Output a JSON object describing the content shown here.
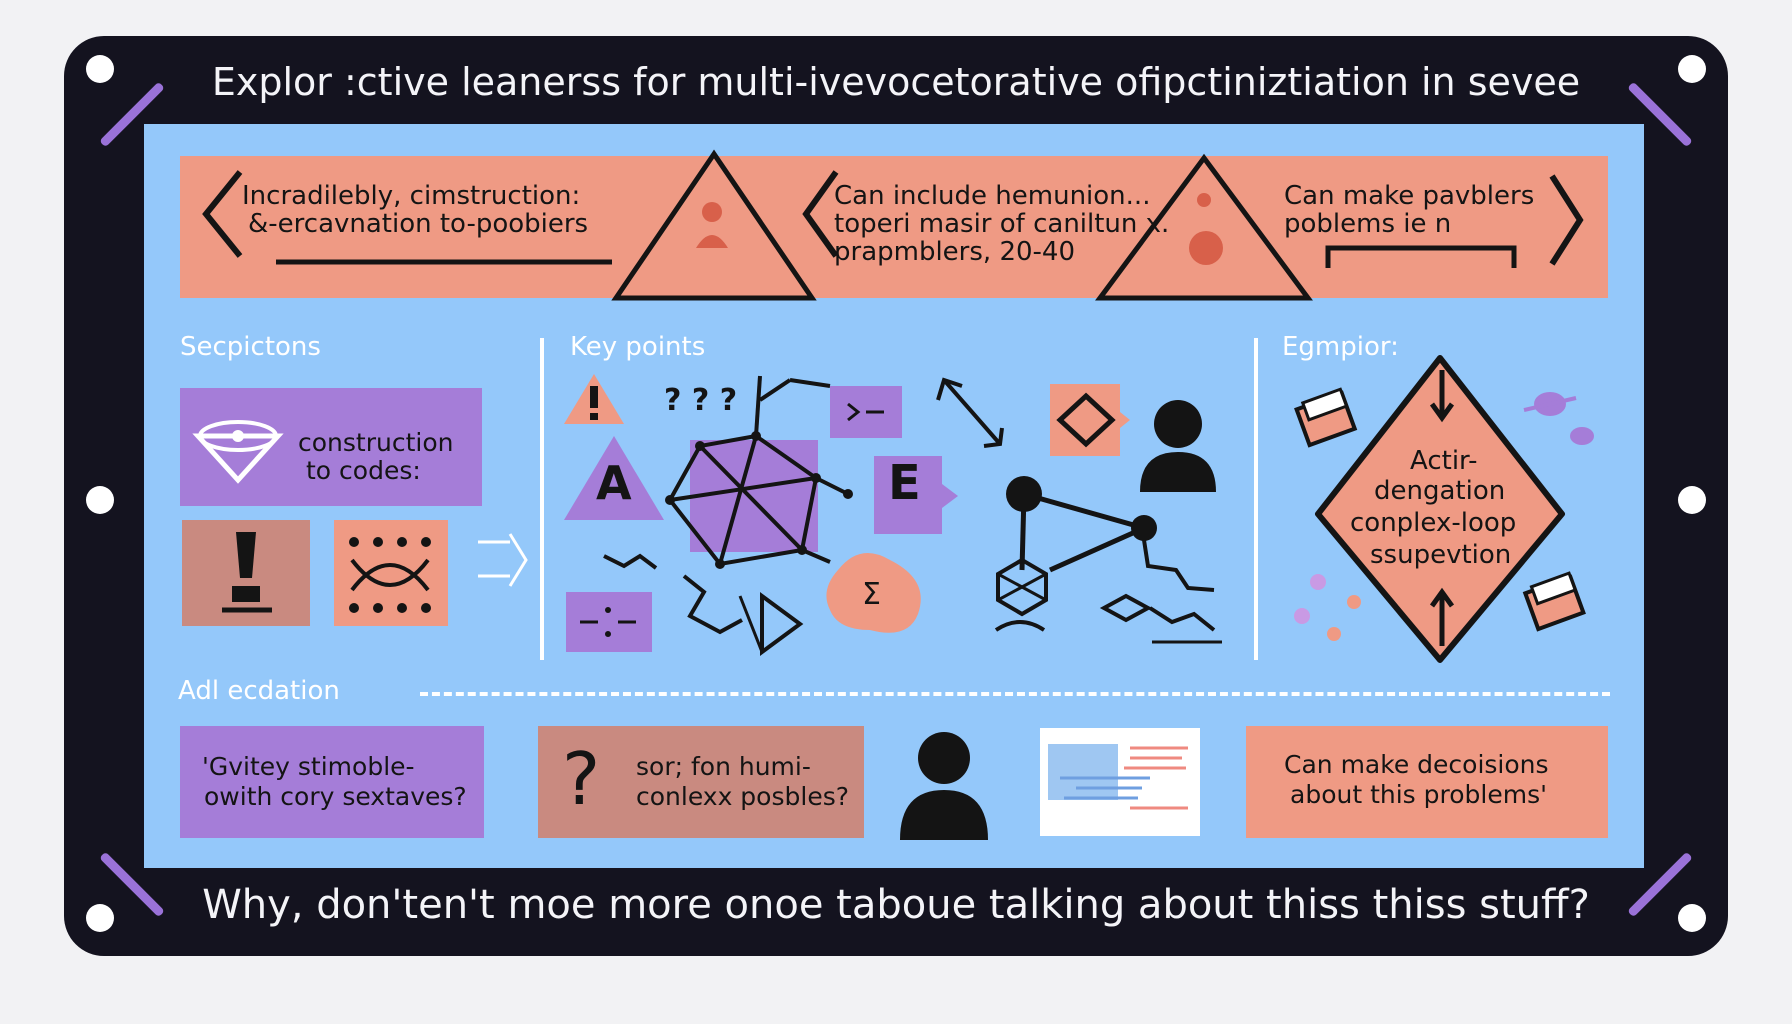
{
  "title": "Explor :ctive leanerss for multi-ivevocetorative ofipctiniztiation in sevee",
  "banner": {
    "text1_line1": "Incradilebly, cimstruction:",
    "text1_line2": "&-ercavnation to-poobiers",
    "text2_line1": "Can include hemunion...",
    "text2_line2": "toperi masir of caniltun x.",
    "text2_line3": "prapmblers, 20-40",
    "text3_line1": "Can make pavblers",
    "text3_line2": "poblems ie n"
  },
  "sections": {
    "left_label": "Secpictons",
    "middle_label": "Key points",
    "right_label": "Egmpior:"
  },
  "left_column": {
    "construction_line1": "construction",
    "construction_line2": "to codes:"
  },
  "middle_column": {
    "letter_a": "A",
    "letter_e": "E",
    "question_marks": "? ? ?",
    "sigma_label": "Σ"
  },
  "diamond": {
    "line1": "Actir-",
    "line2": "dengation",
    "line3": "conplex-loop",
    "line4": "ssupevtion"
  },
  "bottom_section": {
    "label": "Adl ecdation",
    "box1_line1": "'Gvitey stimoble-",
    "box1_line2": "owith cory sextaves?",
    "box2_line1": "sor; fon humi-",
    "box2_line2": "conlexx posbles?",
    "box2_mark": "?",
    "box3_line1": "Can make decoisions",
    "box3_line2": "about this problems'"
  },
  "footer": "Why, don'ten't moe more onoe taboue talking about thiss thiss stuff?",
  "colors": {
    "frame": "#14131f",
    "panel": "#94c8fa",
    "salmon": "#ef9a84",
    "purple": "#a57dd8",
    "rose": "#c98a80",
    "accent_slash": "#9a72d8"
  },
  "icons": [
    "warning-triangle-icon",
    "person-icon",
    "diamond-icon",
    "network-icon",
    "exclamation-icon",
    "question-icon",
    "document-icon",
    "hexagon-icon",
    "arrow-up-icon",
    "arrow-down-icon"
  ]
}
